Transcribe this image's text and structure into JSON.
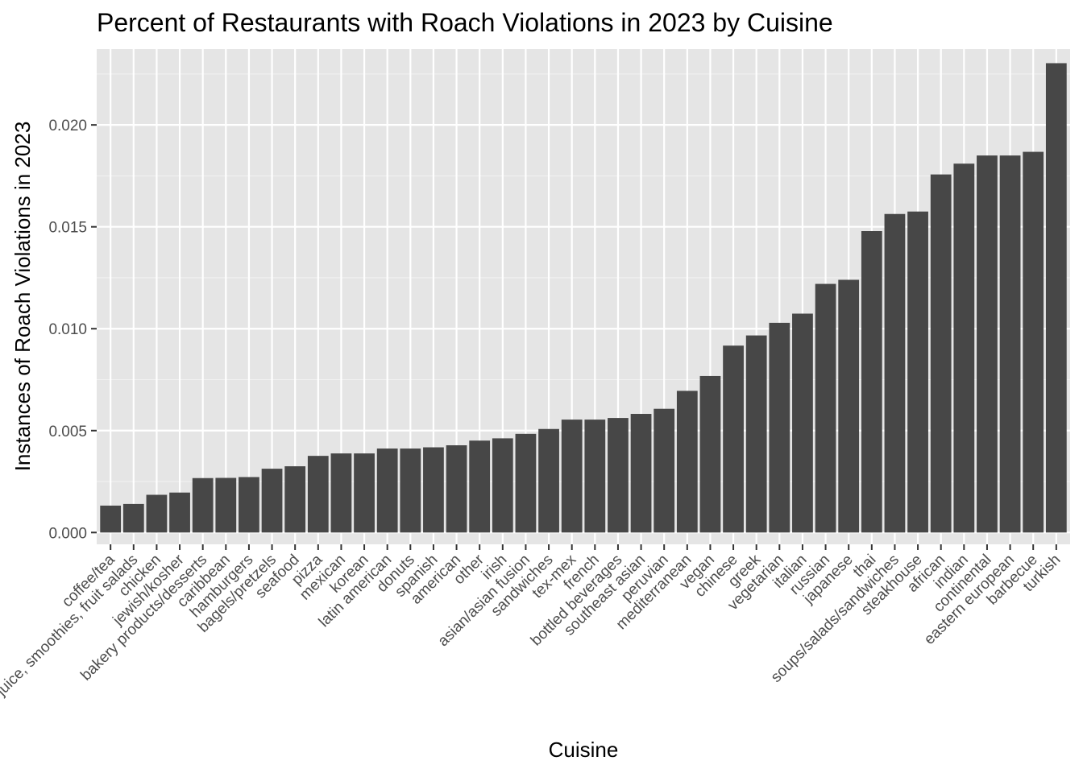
{
  "chart_data": {
    "type": "bar",
    "title": "Percent of Restaurants with Roach Violations in 2023 by Cuisine",
    "xlabel": "Cuisine",
    "ylabel": "Instances of Roach Violations in 2023",
    "ylim": [
      -0.00058,
      0.02372
    ],
    "yticks": [
      0.0,
      0.005,
      0.01,
      0.015,
      0.02
    ],
    "ytick_labels": [
      "0.000",
      "0.005",
      "0.010",
      "0.015",
      "0.020"
    ],
    "grid": true,
    "colors": {
      "bar": "#474747",
      "panel": "#e5e5e5",
      "grid": "#ffffff"
    },
    "categories": [
      "coffee/tea",
      "juice, smoothies, fruit salads",
      "chicken",
      "jewish/kosher",
      "bakery products/desserts",
      "caribbean",
      "hamburgers",
      "bagels/pretzels",
      "seafood",
      "pizza",
      "mexican",
      "korean",
      "latin american",
      "donuts",
      "spanish",
      "american",
      "other",
      "irish",
      "asian/asian fusion",
      "sandwiches",
      "tex-mex",
      "french",
      "bottled beverages",
      "southeast asian",
      "peruvian",
      "mediterranean",
      "vegan",
      "chinese",
      "greek",
      "vegetarian",
      "italian",
      "russian",
      "japanese",
      "thai",
      "soups/salads/sandwiches",
      "steakhouse",
      "african",
      "indian",
      "continental",
      "eastern european",
      "barbecue",
      "turkish"
    ],
    "values": [
      0.00132,
      0.0014,
      0.00185,
      0.00196,
      0.00267,
      0.00268,
      0.00272,
      0.00313,
      0.00325,
      0.00376,
      0.00388,
      0.00388,
      0.00412,
      0.00412,
      0.00418,
      0.00428,
      0.00451,
      0.00462,
      0.00484,
      0.00508,
      0.00554,
      0.00554,
      0.00562,
      0.00582,
      0.00607,
      0.00695,
      0.00768,
      0.00917,
      0.00967,
      0.01029,
      0.01074,
      0.0122,
      0.0124,
      0.01479,
      0.01563,
      0.01575,
      0.01757,
      0.0181,
      0.0185,
      0.0185,
      0.01868,
      0.02303
    ]
  }
}
